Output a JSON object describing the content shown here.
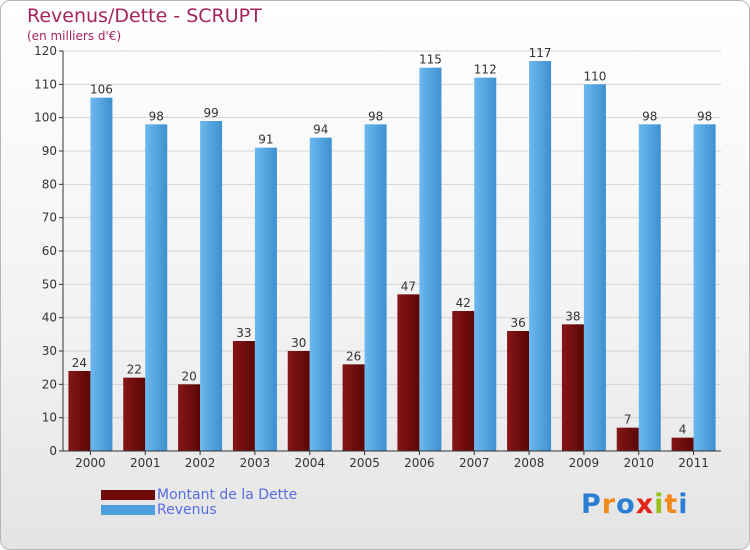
{
  "header": {
    "title": "Revenus/Dette - SCRUPT",
    "subtitle": "(en milliers d'€)"
  },
  "colors": {
    "title": "#a5245e",
    "dette": "#6e0a0a",
    "revenus": "#4ea0dd",
    "legend_text": "#5a6de0"
  },
  "legend": {
    "items": [
      {
        "label": "Montant de la Dette",
        "color": "#6e0a0a"
      },
      {
        "label": "Revenus",
        "color": "#4ea0dd"
      }
    ]
  },
  "logo": {
    "letters": [
      "P",
      "r",
      "o",
      "x",
      "i",
      "t",
      "i"
    ],
    "colors": [
      "#2a7fd4",
      "#f08a1c",
      "#2a7fd4",
      "#e2231a",
      "#9bc21a",
      "#f08a1c",
      "#2a7fd4"
    ]
  },
  "chart_data": {
    "type": "bar",
    "title": "Revenus/Dette - SCRUPT",
    "subtitle": "(en milliers d'€)",
    "categories": [
      "2000",
      "2001",
      "2002",
      "2003",
      "2004",
      "2005",
      "2006",
      "2007",
      "2008",
      "2009",
      "2010",
      "2011"
    ],
    "series": [
      {
        "name": "Montant de la Dette",
        "color": "#6e0a0a",
        "values": [
          24,
          22,
          20,
          33,
          30,
          26,
          47,
          42,
          36,
          38,
          7,
          4
        ]
      },
      {
        "name": "Revenus",
        "color": "#4ea0dd",
        "values": [
          106,
          98,
          99,
          91,
          94,
          98,
          115,
          112,
          117,
          110,
          98,
          98
        ]
      }
    ],
    "ylim": [
      0,
      120
    ],
    "yticks": [
      0,
      10,
      20,
      30,
      40,
      50,
      60,
      70,
      80,
      90,
      100,
      110,
      120
    ],
    "grid": true,
    "legend_position": "bottom-left"
  }
}
